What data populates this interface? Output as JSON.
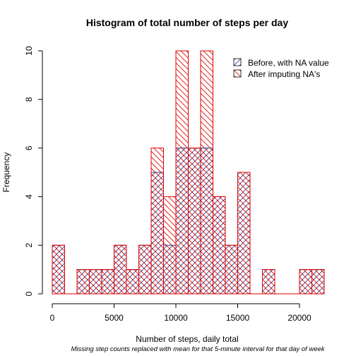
{
  "chart_data": {
    "type": "histogram",
    "title": "Histogram of total number of steps per day",
    "xlabel": "Number of steps, daily total",
    "ylabel": "Frequency",
    "note": "Missing step counts replaced with mean for that 5-minute interval for that day of week",
    "bin_width": 1000,
    "bin_start": 0,
    "xlim": [
      0,
      22000
    ],
    "ylim": [
      0,
      10
    ],
    "x_ticks": [
      0,
      5000,
      10000,
      15000,
      20000
    ],
    "y_ticks": [
      0,
      2,
      4,
      6,
      8,
      10
    ],
    "grid": false,
    "legend_position": "top-right",
    "series": [
      {
        "name": "Before, with NA value",
        "color": "#1f3b8a",
        "values": [
          2,
          0,
          1,
          1,
          1,
          2,
          1,
          2,
          5,
          2,
          6,
          6,
          6,
          4,
          2,
          5,
          0,
          1,
          0,
          0,
          1,
          1
        ]
      },
      {
        "name": "After imputing NA's",
        "color": "#e00000",
        "values": [
          2,
          0,
          1,
          1,
          1,
          2,
          1,
          2,
          6,
          4,
          10,
          6,
          10,
          4,
          2,
          5,
          0,
          1,
          0,
          0,
          1,
          1
        ]
      }
    ]
  }
}
